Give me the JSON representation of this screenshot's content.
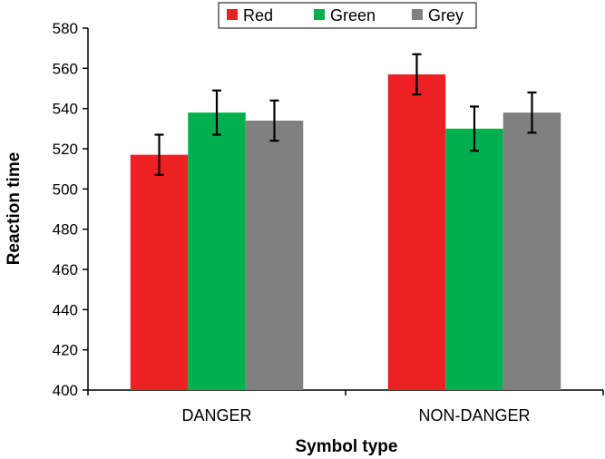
{
  "chart_data": {
    "type": "bar",
    "categories": [
      "DANGER",
      "NON-DANGER"
    ],
    "series": [
      {
        "name": "Red",
        "color": "#ed2024",
        "values": [
          517,
          557
        ],
        "errors": [
          10,
          10
        ]
      },
      {
        "name": "Green",
        "color": "#00b04f",
        "values": [
          538,
          530
        ],
        "errors": [
          11,
          11
        ]
      },
      {
        "name": "Grey",
        "color": "#808080",
        "values": [
          534,
          538
        ],
        "errors": [
          10,
          10
        ]
      }
    ],
    "xlabel": "Symbol type",
    "ylabel": "Reaction time",
    "ylim": [
      400,
      580
    ],
    "yticks": [
      400,
      420,
      440,
      460,
      480,
      500,
      520,
      540,
      560,
      580
    ],
    "grid": false,
    "legend_position": "top-center"
  }
}
